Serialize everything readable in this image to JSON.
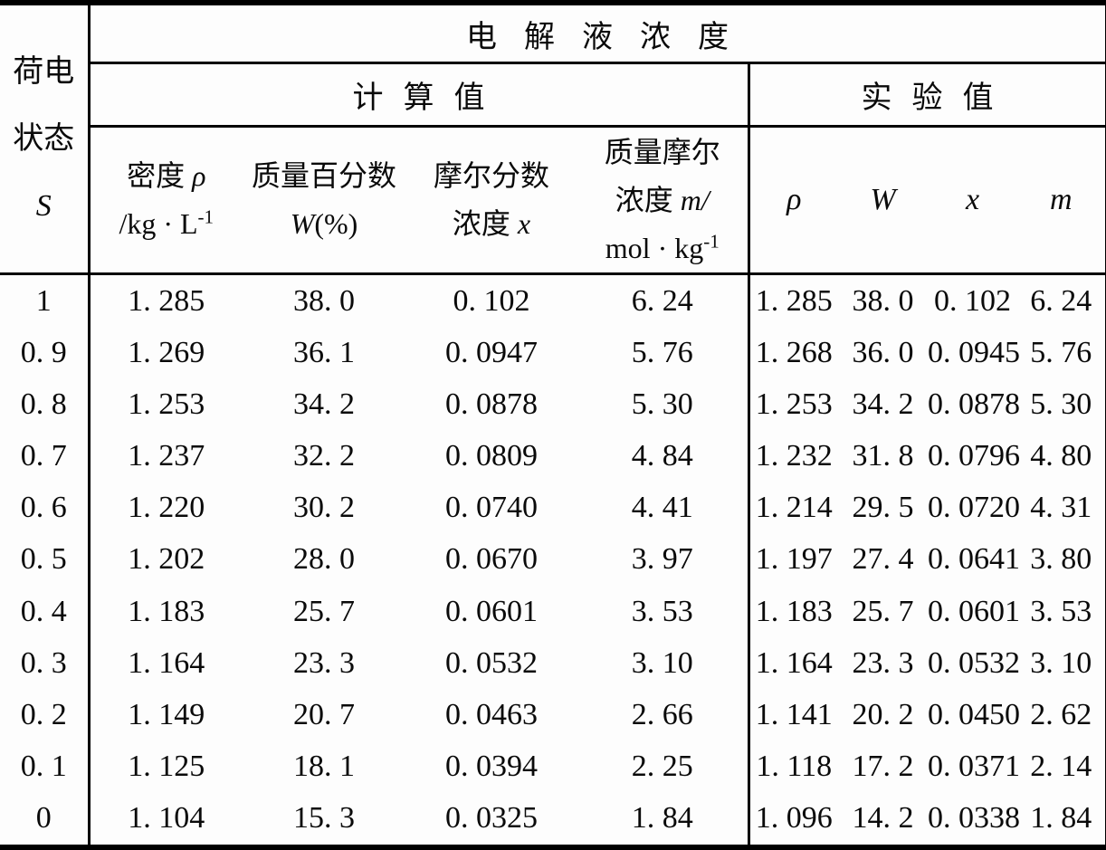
{
  "table": {
    "corner": {
      "line1": "荷电",
      "line2": "状态",
      "symbol": "S"
    },
    "title": "电解液浓度",
    "groups": {
      "calculated": "计算值",
      "experimental": "实验值"
    },
    "calc_headers": {
      "density": {
        "label": "密度 ",
        "symbol": "ρ",
        "unit_base": "/kg · L",
        "unit_sup": "-1"
      },
      "mass_percent": {
        "label": "质量百分数",
        "symbol": "W",
        "paren": "(%)"
      },
      "mole_fraction": {
        "label": "摩尔分数",
        "label2": "浓度 ",
        "symbol": "x"
      },
      "molality": {
        "label": "质量摩尔",
        "label2": "浓度 ",
        "symbol": "m/",
        "unit_base": "mol · kg",
        "unit_sup": "-1"
      }
    },
    "exp_headers": [
      "ρ",
      "W",
      "x",
      "m"
    ],
    "rows": [
      {
        "s": "1",
        "calc": [
          "1. 285",
          "38. 0",
          "0. 102",
          "6. 24"
        ],
        "exp": [
          "1. 285",
          "38. 0",
          "0. 102",
          "6. 24"
        ]
      },
      {
        "s": "0. 9",
        "calc": [
          "1. 269",
          "36. 1",
          "0. 0947",
          "5. 76"
        ],
        "exp": [
          "1. 268",
          "36. 0",
          "0. 0945",
          "5. 76"
        ]
      },
      {
        "s": "0. 8",
        "calc": [
          "1. 253",
          "34. 2",
          "0. 0878",
          "5. 30"
        ],
        "exp": [
          "1. 253",
          "34. 2",
          "0. 0878",
          "5. 30"
        ]
      },
      {
        "s": "0. 7",
        "calc": [
          "1. 237",
          "32. 2",
          "0. 0809",
          "4. 84"
        ],
        "exp": [
          "1. 232",
          "31. 8",
          "0. 0796",
          "4. 80"
        ]
      },
      {
        "s": "0. 6",
        "calc": [
          "1. 220",
          "30. 2",
          "0. 0740",
          "4. 41"
        ],
        "exp": [
          "1. 214",
          "29. 5",
          "0. 0720",
          "4. 31"
        ]
      },
      {
        "s": "0. 5",
        "calc": [
          "1. 202",
          "28. 0",
          "0. 0670",
          "3. 97"
        ],
        "exp": [
          "1. 197",
          "27. 4",
          "0. 0641",
          "3. 80"
        ]
      },
      {
        "s": "0. 4",
        "calc": [
          "1. 183",
          "25. 7",
          "0. 0601",
          "3. 53"
        ],
        "exp": [
          "1. 183",
          "25. 7",
          "0. 0601",
          "3. 53"
        ]
      },
      {
        "s": "0. 3",
        "calc": [
          "1. 164",
          "23. 3",
          "0. 0532",
          "3. 10"
        ],
        "exp": [
          "1. 164",
          "23. 3",
          "0. 0532",
          "3. 10"
        ]
      },
      {
        "s": "0. 2",
        "calc": [
          "1. 149",
          "20. 7",
          "0. 0463",
          "2. 66"
        ],
        "exp": [
          "1. 141",
          "20. 2",
          "0. 0450",
          "2. 62"
        ]
      },
      {
        "s": "0. 1",
        "calc": [
          "1. 125",
          "18. 1",
          "0. 0394",
          "2. 25"
        ],
        "exp": [
          "1. 118",
          "17. 2",
          "0. 0371",
          "2. 14"
        ]
      },
      {
        "s": "0",
        "calc": [
          "1. 104",
          "15. 3",
          "0. 0325",
          "1. 84"
        ],
        "exp": [
          "1. 096",
          "14. 2",
          "0. 0338",
          "1. 84"
        ]
      }
    ]
  }
}
